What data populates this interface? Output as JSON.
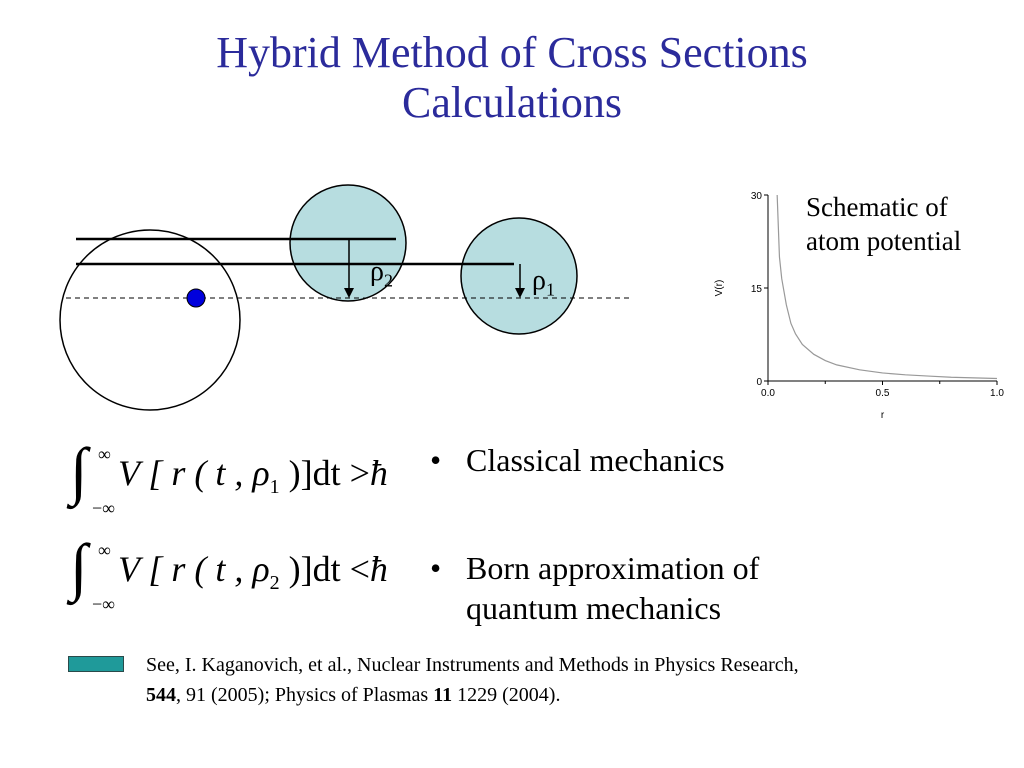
{
  "title": {
    "line1": "Hybrid Method of Cross Sections",
    "line2": "Calculations"
  },
  "diagram": {
    "rho2_symbol": "ρ",
    "rho2_sub": "2",
    "rho1_symbol": "ρ",
    "rho1_sub": "1",
    "circle_fill": "#b7dde0",
    "dot_color": "#0000dd"
  },
  "chart_data": {
    "type": "line",
    "xlabel": "r",
    "ylabel": "V(r)",
    "xlim": [
      0.0,
      1.0
    ],
    "ylim": [
      0,
      30
    ],
    "x_ticks": [
      "0.0",
      "0.5",
      "1.0"
    ],
    "y_ticks": [
      "0",
      "15",
      "30"
    ],
    "series": [
      {
        "x": [
          0.04,
          0.05,
          0.06,
          0.08,
          0.1,
          0.12,
          0.15,
          0.2,
          0.25,
          0.3,
          0.4,
          0.5,
          0.6,
          0.7,
          0.8,
          0.9,
          1.0
        ],
        "y": [
          30,
          20,
          16.5,
          12.3,
          9.3,
          7.6,
          5.9,
          4.3,
          3.3,
          2.6,
          1.8,
          1.3,
          1.0,
          0.8,
          0.6,
          0.5,
          0.4
        ]
      }
    ],
    "caption_line1": "Schematic of",
    "caption_line2": "atom potential"
  },
  "equations": [
    {
      "upper": "∞",
      "lower": "−∞",
      "pre": "V [ r ( t , ",
      "rho": "ρ",
      "sub": "1",
      "post": " )]dt >",
      "hbar": "ħ"
    },
    {
      "upper": "∞",
      "lower": "−∞",
      "pre": "V [ r ( t , ",
      "rho": "ρ",
      "sub": "2",
      "post": " )]dt <",
      "hbar": "ħ"
    }
  ],
  "bullets": [
    {
      "dot": "•",
      "line1": "Classical mechanics",
      "line2": ""
    },
    {
      "dot": "•",
      "line1": "Born approximation of",
      "line2": "quantum mechanics"
    }
  ],
  "reference": {
    "line1": "See, I. Kaganovich, et al., Nuclear Instruments and Methods in Physics Research,",
    "vol1": "544",
    "mid": ", 91 (2005);  Physics of Plasmas ",
    "vol2": "11",
    "end": " 1229 (2004).",
    "box_color": "#1f9a9a"
  }
}
